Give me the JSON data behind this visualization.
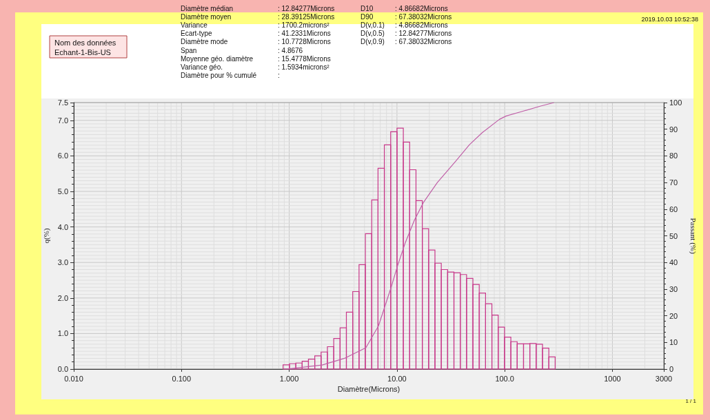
{
  "chart_data": {
    "type": "histogram",
    "xlabel": "Diamètre(Microns)",
    "ylabel": "q(%)",
    "y2label": "Passant (%)",
    "log": "x",
    "grid": true,
    "xlim": [
      0.01,
      3000
    ],
    "xticks": [
      {
        "value": 0.01,
        "label": "0.010"
      },
      {
        "value": 0.1,
        "label": "0.100"
      },
      {
        "value": 1,
        "label": "1.000"
      },
      {
        "value": 10,
        "label": "10.00"
      },
      {
        "value": 100,
        "label": "100.0"
      },
      1000,
      3000
    ],
    "ylim": [
      0,
      7.5
    ],
    "yticks": [
      {
        "value": 0,
        "label": "0.0"
      },
      {
        "value": 1,
        "label": "1.0"
      },
      {
        "value": 2,
        "label": "2.0"
      },
      {
        "value": 3,
        "label": "3.0"
      },
      {
        "value": 4,
        "label": "4.0"
      },
      {
        "value": 5,
        "label": "5.0"
      },
      {
        "value": 6,
        "label": "6.0"
      },
      {
        "value": 7,
        "label": "7.0"
      },
      7.5
    ],
    "y2lim": [
      0,
      100
    ],
    "y2ticks": [
      0,
      10,
      20,
      30,
      40,
      50,
      60,
      70,
      80,
      90,
      100
    ],
    "series": [
      {
        "color": "#c8388a",
        "bins": [
          0.877,
          1.005,
          1.151,
          1.318,
          1.508,
          1.726,
          1.976,
          2.262,
          2.589,
          2.964,
          3.393,
          3.885,
          4.447,
          5.091,
          5.828,
          6.672,
          7.637,
          8.743,
          10.01,
          11.46,
          13.12,
          15.02,
          17.19,
          19.68,
          22.53,
          25.79,
          29.52,
          33.8,
          38.69,
          44.29,
          50.71,
          58.05,
          66.45,
          76.07,
          87.08,
          99.69,
          114.1,
          130.6,
          149.6,
          171.2,
          196,
          224.4,
          256.9,
          294.1
        ],
        "values": [
          0.12,
          0.15,
          0.17,
          0.22,
          0.28,
          0.37,
          0.48,
          0.63,
          0.86,
          1.16,
          1.6,
          2.18,
          2.94,
          3.81,
          4.76,
          5.65,
          6.31,
          6.68,
          6.78,
          6.39,
          5.61,
          4.74,
          3.95,
          3.35,
          2.98,
          2.8,
          2.73,
          2.71,
          2.66,
          2.55,
          2.38,
          2.14,
          1.84,
          1.52,
          1.18,
          0.9,
          0.77,
          0.71,
          0.71,
          0.72,
          0.7,
          0.59,
          0.34
        ]
      },
      {
        "type": "line",
        "axis": "y2",
        "color": "#c060a8",
        "x": [
          0.9,
          1.0,
          2.02,
          3.3,
          5.15,
          6.74,
          8.85,
          10.1,
          11.9,
          14.5,
          17.6,
          23.7,
          35.1,
          47.1,
          61.8,
          89.3,
          103.5,
          146,
          216,
          287
        ],
        "values": [
          0,
          0.1,
          1.5,
          4.1,
          8.0,
          16.2,
          30.8,
          38.6,
          47.2,
          55.8,
          62.5,
          70,
          78,
          84.2,
          88.7,
          93.7,
          95,
          96.7,
          98.7,
          100
        ]
      }
    ],
    "annotations": [
      "2019.10.03 10:52:38",
      "Nom des données",
      "Echant-1-Bis-US",
      "Diamètre médian",
      "Diamètre moyen",
      "Variance",
      "Ecart-type",
      "Diamètre mode",
      "Span",
      "Moyenne géo. diamètre",
      "Variance géo.",
      "Diamètre pour % cumulé",
      ": 12.84277Microns",
      ": 28.39125Microns",
      ": 1700.2microns²",
      ": 41.2331Microns",
      ": 10.7728Microns",
      ": 4.8676",
      ": 15.4778Microns",
      ": 1.5934microns²",
      ":",
      "D10",
      "D90",
      "D(v,0.1)",
      "D(v,0.5)",
      "D(v,0.9)",
      ": 4.86682Microns",
      ": 67.38032Microns",
      ": 4.86682Microns",
      ": 12.84277Microns",
      ": 67.38032Microns",
      "1 / 1"
    ]
  }
}
